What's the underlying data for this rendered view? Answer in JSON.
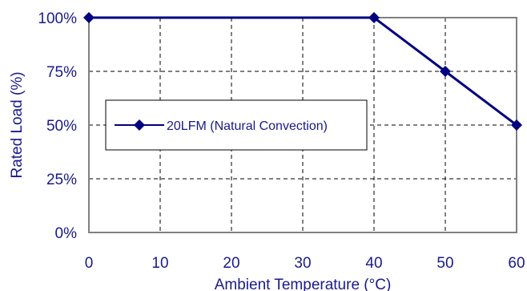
{
  "chart_data": {
    "type": "line",
    "title": "",
    "xlabel": "Ambient Temperature (°C)",
    "ylabel": "Rated Load (%)",
    "xlim": [
      0,
      60
    ],
    "ylim": [
      0,
      100
    ],
    "x_ticks": [
      0,
      10,
      20,
      30,
      40,
      50,
      60
    ],
    "x_tick_labels": [
      "0",
      "10",
      "20",
      "30",
      "40",
      "50",
      "60"
    ],
    "y_ticks": [
      0,
      25,
      50,
      75,
      100
    ],
    "y_tick_labels": [
      "0%",
      "25%",
      "50%",
      "75%",
      "100%"
    ],
    "grid": true,
    "legend_position": "center-left",
    "series": [
      {
        "name": "20LFM (Natural Convection)",
        "color": "#000080",
        "marker": "diamond",
        "x": [
          0,
          40,
          50,
          60
        ],
        "y": [
          100,
          100,
          75,
          50
        ]
      }
    ]
  }
}
